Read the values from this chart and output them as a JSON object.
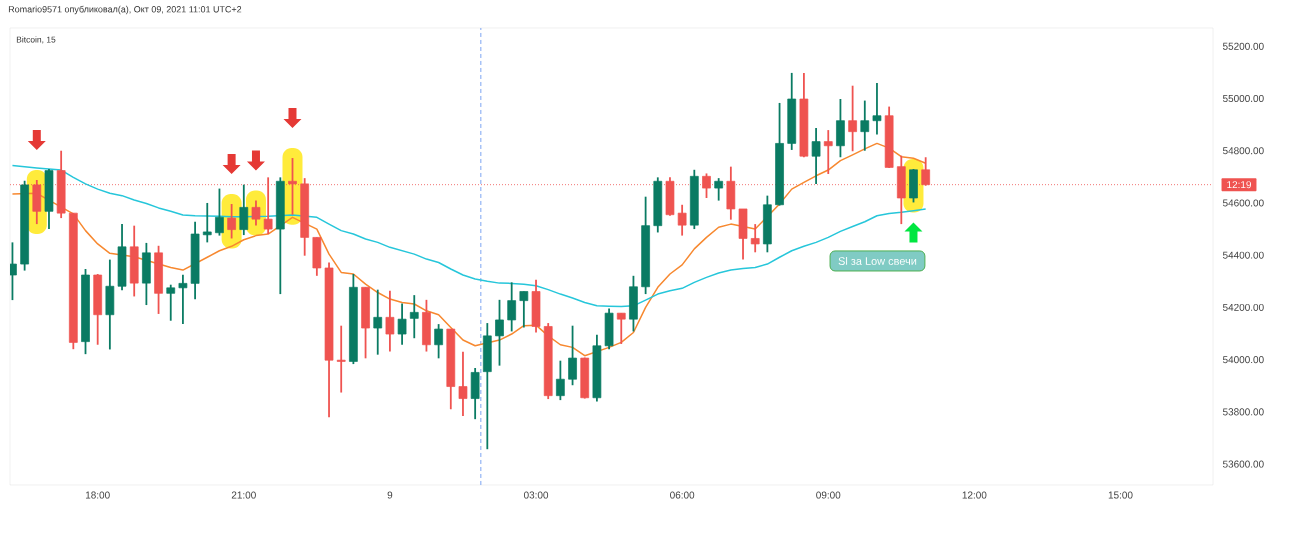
{
  "chart_data": {
    "type": "candlestick",
    "title": "Romario9571 опубликовал(а), Окт 09, 2021 11:01 UTC+2",
    "subtitle": "Bitcoin, 15",
    "x": [
      "2021-10-08T16:15",
      "2021-10-08T16:30",
      "2021-10-08T16:45",
      "2021-10-08T17:00",
      "2021-10-08T17:15",
      "2021-10-08T17:30",
      "2021-10-08T17:45",
      "2021-10-08T18:00",
      "2021-10-08T18:15",
      "2021-10-08T18:30",
      "2021-10-08T18:45",
      "2021-10-08T19:00",
      "2021-10-08T19:15",
      "2021-10-08T19:30",
      "2021-10-08T19:45",
      "2021-10-08T20:00",
      "2021-10-08T20:15",
      "2021-10-08T20:30",
      "2021-10-08T20:45",
      "2021-10-08T21:00",
      "2021-10-08T21:15",
      "2021-10-08T21:30",
      "2021-10-08T21:45",
      "2021-10-08T22:00",
      "2021-10-08T22:15",
      "2021-10-08T22:30",
      "2021-10-08T22:45",
      "2021-10-08T23:00",
      "2021-10-08T23:15",
      "2021-10-08T23:30",
      "2021-10-08T23:45",
      "2021-10-09T00:00",
      "2021-10-09T00:15",
      "2021-10-09T00:30",
      "2021-10-09T00:45",
      "2021-10-09T01:00",
      "2021-10-09T01:15",
      "2021-10-09T01:30",
      "2021-10-09T01:45",
      "2021-10-09T02:00",
      "2021-10-09T02:15",
      "2021-10-09T02:30",
      "2021-10-09T02:45",
      "2021-10-09T03:00",
      "2021-10-09T03:15",
      "2021-10-09T03:30",
      "2021-10-09T03:45",
      "2021-10-09T04:00",
      "2021-10-09T04:15",
      "2021-10-09T04:30",
      "2021-10-09T04:45",
      "2021-10-09T05:00",
      "2021-10-09T05:15",
      "2021-10-09T05:30",
      "2021-10-09T05:45",
      "2021-10-09T06:00",
      "2021-10-09T06:15",
      "2021-10-09T06:30",
      "2021-10-09T06:45",
      "2021-10-09T07:00",
      "2021-10-09T07:15",
      "2021-10-09T07:30",
      "2021-10-09T07:45",
      "2021-10-09T08:00",
      "2021-10-09T08:15",
      "2021-10-09T08:30",
      "2021-10-09T08:45",
      "2021-10-09T09:00",
      "2021-10-09T09:15",
      "2021-10-09T09:30",
      "2021-10-09T09:45",
      "2021-10-09T10:00",
      "2021-10-09T10:15",
      "2021-10-09T10:30",
      "2021-10-09T10:45",
      "2021-10-09T11:00"
    ],
    "ohlc": [
      [
        54324,
        54449,
        54228,
        54366
      ],
      [
        54366,
        54685,
        54341,
        54669
      ],
      [
        54669,
        54688,
        54519,
        54568
      ],
      [
        54568,
        54730,
        54500,
        54724
      ],
      [
        54724,
        54800,
        54542,
        54561
      ],
      [
        54561,
        54561,
        54040,
        54066
      ],
      [
        54069,
        54347,
        54021,
        54324
      ],
      [
        54324,
        54328,
        54057,
        54172
      ],
      [
        54172,
        54383,
        54039,
        54281
      ],
      [
        54281,
        54519,
        54266,
        54432
      ],
      [
        54432,
        54513,
        54242,
        54293
      ],
      [
        54293,
        54447,
        54209,
        54409
      ],
      [
        54409,
        54436,
        54175,
        54254
      ],
      [
        54254,
        54287,
        54149,
        54275
      ],
      [
        54275,
        54325,
        54136,
        54292
      ],
      [
        54292,
        54528,
        54231,
        54481
      ],
      [
        54478,
        54600,
        54449,
        54489
      ],
      [
        54486,
        54655,
        54475,
        54545
      ],
      [
        54542,
        54596,
        54464,
        54498
      ],
      [
        54498,
        54670,
        54477,
        54583
      ],
      [
        54583,
        54609,
        54514,
        54538
      ],
      [
        54538,
        54698,
        54481,
        54500
      ],
      [
        54500,
        54698,
        54251,
        54683
      ],
      [
        54683,
        54772,
        54555,
        54673
      ],
      [
        54673,
        54695,
        54398,
        54468
      ],
      [
        54468,
        54468,
        54321,
        54351
      ],
      [
        54351,
        54372,
        53779,
        53998
      ],
      [
        53998,
        54130,
        53874,
        53993
      ],
      [
        53993,
        54328,
        53983,
        54277
      ],
      [
        54277,
        54277,
        54005,
        54121
      ],
      [
        54121,
        54268,
        54019,
        54162
      ],
      [
        54162,
        54264,
        54031,
        54098
      ],
      [
        54098,
        54215,
        54057,
        54155
      ],
      [
        54158,
        54247,
        54082,
        54181
      ],
      [
        54181,
        54229,
        54031,
        54057
      ],
      [
        54057,
        54136,
        54005,
        54117
      ],
      [
        54117,
        54117,
        53810,
        53897
      ],
      [
        53897,
        54030,
        53784,
        53851
      ],
      [
        53851,
        53968,
        53772,
        53951
      ],
      [
        53954,
        54140,
        53657,
        54091
      ],
      [
        54091,
        54229,
        53977,
        54152
      ],
      [
        54152,
        54296,
        54108,
        54226
      ],
      [
        54226,
        54261,
        54123,
        54261
      ],
      [
        54261,
        54306,
        54104,
        54127
      ],
      [
        54127,
        54140,
        53849,
        53862
      ],
      [
        53862,
        53996,
        53845,
        53925
      ],
      [
        53925,
        54130,
        53902,
        54006
      ],
      [
        54006,
        54008,
        53851,
        53854
      ],
      [
        53854,
        54095,
        53840,
        54053
      ],
      [
        54053,
        54196,
        54040,
        54178
      ],
      [
        54178,
        54178,
        54060,
        54155
      ],
      [
        54155,
        54321,
        54108,
        54279
      ],
      [
        54279,
        54624,
        54251,
        54513
      ],
      [
        54513,
        54698,
        54487,
        54683
      ],
      [
        54683,
        54698,
        54551,
        54555
      ],
      [
        54561,
        54593,
        54475,
        54515
      ],
      [
        54515,
        54727,
        54500,
        54702
      ],
      [
        54702,
        54713,
        54619,
        54657
      ],
      [
        54657,
        54695,
        54609,
        54683
      ],
      [
        54683,
        54739,
        54536,
        54577
      ],
      [
        54577,
        54577,
        54383,
        54464
      ],
      [
        54464,
        54519,
        54411,
        54443
      ],
      [
        54443,
        54628,
        54411,
        54593
      ],
      [
        54593,
        54983,
        54590,
        54828
      ],
      [
        54828,
        55098,
        54803,
        54998
      ],
      [
        54998,
        55098,
        54775,
        54779
      ],
      [
        54779,
        54887,
        54673,
        54835
      ],
      [
        54835,
        54879,
        54711,
        54819
      ],
      [
        54819,
        54998,
        54775,
        54915
      ],
      [
        54915,
        55049,
        54798,
        54873
      ],
      [
        54873,
        54992,
        54800,
        54915
      ],
      [
        54915,
        55059,
        54862,
        54934
      ],
      [
        54934,
        54969,
        54734,
        54736
      ],
      [
        54739,
        54781,
        54519,
        54619
      ],
      [
        54619,
        54730,
        54602,
        54727
      ],
      [
        54727,
        54775,
        54666,
        54670
      ]
    ],
    "colors": [
      "#0a7b63",
      "#0a7b63",
      "#ef5350",
      "#0a7b63",
      "#ef5350",
      "#ef5350",
      "#0a7b63",
      "#ef5350",
      "#0a7b63",
      "#0a7b63",
      "#ef5350",
      "#0a7b63",
      "#ef5350",
      "#0a7b63",
      "#0a7b63",
      "#0a7b63",
      "#0a7b63",
      "#0a7b63",
      "#ef5350",
      "#0a7b63",
      "#ef5350",
      "#ef5350",
      "#0a7b63",
      "#ef5350",
      "#ef5350",
      "#ef5350",
      "#ef5350",
      "#ef5350",
      "#0a7b63",
      "#ef5350",
      "#0a7b63",
      "#ef5350",
      "#0a7b63",
      "#0a7b63",
      "#ef5350",
      "#0a7b63",
      "#ef5350",
      "#ef5350",
      "#0a7b63",
      "#0a7b63",
      "#0a7b63",
      "#0a7b63",
      "#0a7b63",
      "#ef5350",
      "#ef5350",
      "#0a7b63",
      "#0a7b63",
      "#ef5350",
      "#0a7b63",
      "#0a7b63",
      "#ef5350",
      "#0a7b63",
      "#0a7b63",
      "#0a7b63",
      "#ef5350",
      "#ef5350",
      "#0a7b63",
      "#ef5350",
      "#0a7b63",
      "#ef5350",
      "#ef5350",
      "#ef5350",
      "#0a7b63",
      "#0a7b63",
      "#0a7b63",
      "#ef5350",
      "#0a7b63",
      "#ef5350",
      "#0a7b63",
      "#ef5350",
      "#0a7b63",
      "#0a7b63",
      "#ef5350",
      "#ef5350",
      "#0a7b63",
      "#ef5350"
    ],
    "series": [
      {
        "type": "line",
        "color": "#f7882f",
        "x": [
          "2021-10-08T16:15",
          "2021-10-08T16:45",
          "2021-10-08T17:15",
          "2021-10-08T17:30",
          "2021-10-08T17:45",
          "2021-10-08T18:00",
          "2021-10-08T18:15",
          "2021-10-08T18:30",
          "2021-10-08T18:45",
          "2021-10-08T19:00",
          "2021-10-08T19:15",
          "2021-10-08T19:30",
          "2021-10-08T19:45",
          "2021-10-08T20:00",
          "2021-10-08T20:15",
          "2021-10-08T20:30",
          "2021-10-08T20:45",
          "2021-10-08T21:00",
          "2021-10-08T21:15",
          "2021-10-08T21:30",
          "2021-10-08T21:45",
          "2021-10-08T22:00",
          "2021-10-08T22:15",
          "2021-10-08T22:30",
          "2021-10-08T22:45",
          "2021-10-08T23:00",
          "2021-10-08T23:15",
          "2021-10-08T23:30",
          "2021-10-08T23:45",
          "2021-10-09T00:00",
          "2021-10-09T00:15",
          "2021-10-09T00:30",
          "2021-10-09T00:45",
          "2021-10-09T01:00",
          "2021-10-09T01:15",
          "2021-10-09T01:30",
          "2021-10-09T01:45",
          "2021-10-09T02:00",
          "2021-10-09T02:15",
          "2021-10-09T02:30",
          "2021-10-09T02:45",
          "2021-10-09T03:00",
          "2021-10-09T03:15",
          "2021-10-09T03:30",
          "2021-10-09T03:45",
          "2021-10-09T04:00",
          "2021-10-09T04:15",
          "2021-10-09T04:30",
          "2021-10-09T04:45",
          "2021-10-09T05:00",
          "2021-10-09T05:15",
          "2021-10-09T05:30",
          "2021-10-09T05:45",
          "2021-10-09T06:00",
          "2021-10-09T06:15",
          "2021-10-09T06:30",
          "2021-10-09T06:45",
          "2021-10-09T07:00",
          "2021-10-09T07:15",
          "2021-10-09T07:30",
          "2021-10-09T07:45",
          "2021-10-09T08:00",
          "2021-10-09T08:15",
          "2021-10-09T08:30",
          "2021-10-09T08:45",
          "2021-10-09T09:00",
          "2021-10-09T09:15",
          "2021-10-09T09:30",
          "2021-10-09T09:45",
          "2021-10-09T10:00",
          "2021-10-09T10:15",
          "2021-10-09T10:30",
          "2021-10-09T10:45",
          "2021-10-09T11:00"
        ],
        "values": [
          54634,
          54637,
          null,
          54558,
          54494,
          54443,
          54407,
          null,
          54394,
          null,
          null,
          54353,
          54343,
          null,
          54392,
          54417,
          54434,
          54459,
          54475,
          54481,
          null,
          54545,
          null,
          54500,
          54404,
          54334,
          54328,
          54289,
          54257,
          54232,
          54219,
          54213,
          54187,
          54172,
          54123,
          54075,
          54053,
          null,
          54075,
          54098,
          54130,
          54132,
          54091,
          54057,
          54047,
          54015,
          null,
          54047,
          54066,
          54104,
          54200,
          54277,
          54328,
          54363,
          54424,
          54468,
          54507,
          54519,
          54510,
          54500,
          null,
          54596,
          54653,
          54679,
          54704,
          54726,
          54762,
          54784,
          54807,
          54828,
          54810,
          54777,
          54771,
          54752
        ]
      },
      {
        "type": "line",
        "color": "#26c6da",
        "x": [
          "2021-10-08T16:15",
          "2021-10-08T16:45",
          "2021-10-08T17:15",
          "2021-10-08T17:30",
          "2021-10-08T17:45",
          "2021-10-08T18:00",
          "2021-10-08T18:15",
          "2021-10-08T18:30",
          "2021-10-08T18:45",
          "2021-10-08T19:00",
          "2021-10-08T19:15",
          "2021-10-08T19:30",
          "2021-10-08T19:45",
          "2021-10-08T20:00",
          "2021-10-08T20:15",
          "2021-10-08T20:30",
          "2021-10-08T20:45",
          "2021-10-08T21:00",
          "2021-10-08T21:15",
          "2021-10-08T21:30",
          "2021-10-08T21:45",
          "2021-10-08T22:00",
          "2021-10-08T22:15",
          "2021-10-08T22:30",
          "2021-10-08T22:45",
          "2021-10-08T23:00",
          "2021-10-08T23:15",
          "2021-10-08T23:30",
          "2021-10-08T23:45",
          "2021-10-09T00:00",
          "2021-10-09T00:15",
          "2021-10-09T00:30",
          "2021-10-09T00:45",
          "2021-10-09T01:00",
          "2021-10-09T01:15",
          "2021-10-09T01:30",
          "2021-10-09T01:45",
          "2021-10-09T02:00",
          "2021-10-09T02:15",
          "2021-10-09T02:30",
          "2021-10-09T02:45",
          "2021-10-09T03:00",
          "2021-10-09T03:15",
          "2021-10-09T03:30",
          "2021-10-09T03:45",
          "2021-10-09T04:00",
          "2021-10-09T04:15",
          "2021-10-09T04:30",
          "2021-10-09T04:45",
          "2021-10-09T05:00",
          "2021-10-09T05:15",
          "2021-10-09T05:30",
          "2021-10-09T05:45",
          "2021-10-09T06:00",
          "2021-10-09T06:15",
          "2021-10-09T06:30",
          "2021-10-09T06:45",
          "2021-10-09T07:00",
          "2021-10-09T07:15",
          "2021-10-09T07:30",
          "2021-10-09T07:45",
          "2021-10-09T08:00",
          "2021-10-09T08:15",
          "2021-10-09T08:30",
          "2021-10-09T08:45",
          "2021-10-09T09:00",
          "2021-10-09T09:15",
          "2021-10-09T09:30",
          "2021-10-09T09:45",
          "2021-10-09T10:00",
          "2021-10-09T10:15",
          "2021-10-09T10:30",
          "2021-10-09T10:45",
          "2021-10-09T11:00"
        ],
        "values": [
          54743,
          54734,
          54726,
          54698,
          54673,
          54653,
          54637,
          54628,
          54611,
          54598,
          54581,
          54568,
          54554,
          54551,
          54550,
          54549,
          54547,
          54547,
          null,
          54549,
          null,
          54554,
          null,
          54545,
          54519,
          54494,
          54481,
          54462,
          54449,
          54430,
          54417,
          54404,
          54385,
          54372,
          54347,
          54324,
          54309,
          54300,
          54293,
          54292,
          54289,
          54283,
          54268,
          54251,
          54236,
          54219,
          54206,
          54204,
          54203,
          54206,
          54228,
          54251,
          54264,
          54273,
          54296,
          54315,
          54332,
          54343,
          54349,
          54353,
          54366,
          54392,
          54417,
          54434,
          54449,
          54468,
          54491,
          54510,
          54528,
          54551,
          54560,
          54564,
          54570,
          54577
        ]
      }
    ],
    "xlim": [
      "2021-10-08T16:12",
      "2021-10-09T16:54"
    ],
    "ylim": [
      53520,
      55270
    ],
    "xticks": [
      {
        "value": "2021-10-08T18:00",
        "label": "18:00"
      },
      {
        "value": "2021-10-08T21:00",
        "label": "21:00"
      },
      {
        "value": "2021-10-09T00:00",
        "label": "9"
      },
      {
        "value": "2021-10-09T03:00",
        "label": "03:00"
      },
      {
        "value": "2021-10-09T06:00",
        "label": "06:00"
      },
      {
        "value": "2021-10-09T09:00",
        "label": "09:00"
      },
      {
        "value": "2021-10-09T12:00",
        "label": "12:00"
      },
      {
        "value": "2021-10-09T15:00",
        "label": "15:00"
      }
    ],
    "yticks": [
      {
        "value": 53600,
        "label": "53600.00"
      },
      {
        "value": 53800,
        "label": "53800.00"
      },
      {
        "value": 54000,
        "label": "54000.00"
      },
      {
        "value": 54200,
        "label": "54200.00"
      },
      {
        "value": 54400,
        "label": "54400.00"
      },
      {
        "value": 54600,
        "label": "54600.00"
      },
      {
        "value": 54800,
        "label": "54800.00"
      },
      {
        "value": 55000,
        "label": "55000.00"
      },
      {
        "value": 55200,
        "label": "55200.00"
      }
    ],
    "ref_lines": [
      {
        "axis": "y",
        "value": 54670,
        "color": "#ef5350",
        "line_style": "dotted"
      },
      {
        "axis": "x",
        "value": "2021-10-09T01:52",
        "color": "#5b8def",
        "line_style": "dashed"
      }
    ],
    "annotations": [
      "Sl за Low свечи",
      "12:19"
    ]
  }
}
